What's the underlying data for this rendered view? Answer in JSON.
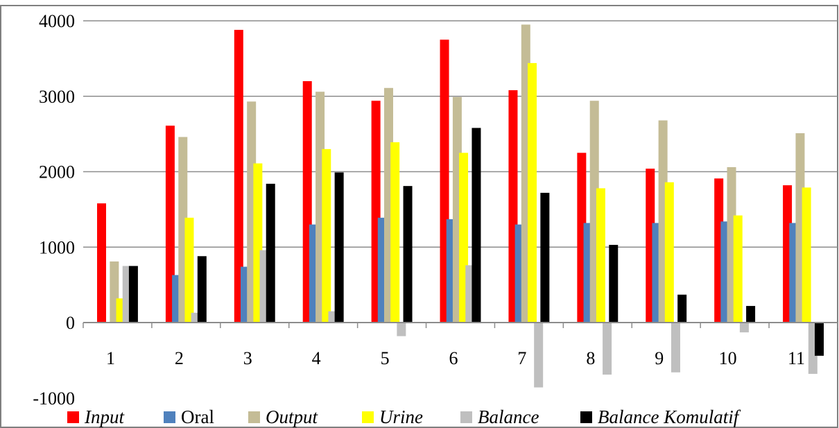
{
  "chart_data": {
    "type": "bar",
    "title": "",
    "xlabel": "",
    "ylabel": "",
    "ylim": [
      -1000,
      4000
    ],
    "yticks": [
      "4000",
      "3000",
      "2000",
      "1000",
      "0",
      "-1000"
    ],
    "ytick_values": [
      4000,
      3000,
      2000,
      1000,
      0,
      -1000
    ],
    "categories": [
      "1",
      "2",
      "3",
      "4",
      "5",
      "6",
      "7",
      "8",
      "9",
      "10",
      "11"
    ],
    "grid": true,
    "legend_position": "bottom",
    "series": [
      {
        "name": "Input",
        "italic": true,
        "color": "#ff0000",
        "values": [
          1580,
          2610,
          3880,
          3200,
          2940,
          3750,
          3080,
          2250,
          2040,
          1910,
          1820
        ]
      },
      {
        "name": "Oral",
        "italic": false,
        "color": "#4f81bd",
        "values": [
          0,
          630,
          740,
          1300,
          1390,
          1370,
          1300,
          1320,
          1320,
          1340,
          1320
        ]
      },
      {
        "name": "Output",
        "italic": true,
        "color": "#c4bc96",
        "values": [
          810,
          2460,
          2930,
          3060,
          3110,
          2990,
          3950,
          2940,
          2680,
          2060,
          2510
        ]
      },
      {
        "name": "Urine",
        "italic": true,
        "color": "#ffff00",
        "values": [
          320,
          1390,
          2110,
          2300,
          2390,
          2250,
          3440,
          1780,
          1860,
          1420,
          1790
        ]
      },
      {
        "name": "Balance",
        "italic": true,
        "color": "#bfbfbf",
        "values": [
          750,
          130,
          960,
          150,
          -180,
          760,
          -860,
          -690,
          -660,
          -130,
          -680
        ]
      },
      {
        "name": "Balance Komulatif",
        "italic": true,
        "color": "#000000",
        "values": [
          750,
          880,
          1840,
          1990,
          1810,
          2580,
          1720,
          1030,
          370,
          220,
          -440
        ]
      }
    ]
  }
}
